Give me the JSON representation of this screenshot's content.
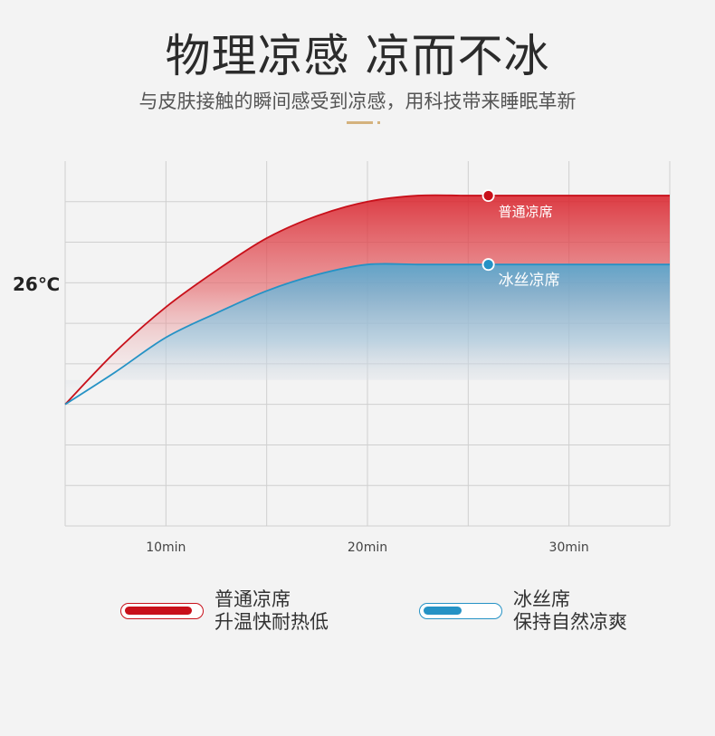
{
  "header": {
    "title": "物理凉感 凉而不冰",
    "subtitle": "与皮肤接触的瞬间感受到凉感，用科技带来睡眠革新"
  },
  "chart_data": {
    "type": "area",
    "y_marker_label": "26℃",
    "x_ticks": [
      "10min",
      "20min",
      "30min"
    ],
    "xlim": [
      5,
      35
    ],
    "ylim": [
      -9,
      0
    ],
    "grid": true,
    "series": [
      {
        "name": "普通凉席",
        "color": "#c8101a",
        "x": [
          5,
          7.5,
          10,
          12.5,
          15,
          17.5,
          20,
          22.5,
          25,
          27.5,
          30,
          32.5,
          35
        ],
        "y": [
          -6,
          -4.7,
          -3.6,
          -2.7,
          -1.9,
          -1.35,
          -1.0,
          -0.85,
          -0.85,
          -0.85,
          -0.85,
          -0.85,
          -0.85
        ],
        "marker_x": 26
      },
      {
        "name": "冰丝凉席",
        "color": "#2592c5",
        "x": [
          5,
          7.5,
          10,
          12.5,
          15,
          17.5,
          20,
          22.5,
          25,
          27.5,
          30,
          32.5,
          35
        ],
        "y": [
          -6,
          -5.2,
          -4.35,
          -3.75,
          -3.2,
          -2.8,
          -2.55,
          -2.55,
          -2.55,
          -2.55,
          -2.55,
          -2.55,
          -2.55
        ],
        "marker_x": 26
      }
    ]
  },
  "legend": [
    {
      "title": "普通凉席",
      "desc": "升温快耐热低",
      "color": "#c8101a"
    },
    {
      "title": "冰丝席",
      "desc": "保持自然凉爽",
      "color": "#2592c5"
    }
  ]
}
